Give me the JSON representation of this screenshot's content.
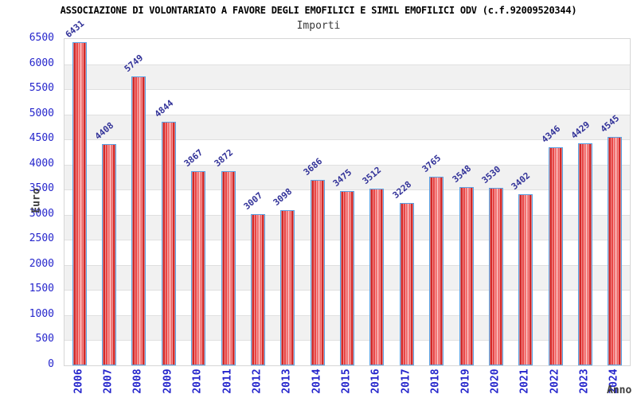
{
  "colors": {
    "bar-fill": "#e43434",
    "bar-fill-dark": "#b81a1a",
    "bar-fill-light": "#f9a0a0",
    "bar-border": "#5aa2e4",
    "tick-text": "#2525cc",
    "value-text": "#333399",
    "axis-title-text": "#3d3d3d",
    "band-gray": "#f1f1f1",
    "grid-line": "#e0e0e0",
    "plot-border": "#d6d6d6",
    "title-text": "#000000",
    "subtitle-text": "#3a3a3a"
  },
  "chart_data": {
    "type": "bar",
    "title": "ASSOCIAZIONE DI VOLONTARIATO A FAVORE DEGLI EMOFILICI E SIMIL EMOFILICI ODV (c.f.92009520344)",
    "subtitle": "Importi",
    "xlabel": "Anno",
    "ylabel": "Euro",
    "categories": [
      "2006",
      "2007",
      "2008",
      "2009",
      "2010",
      "2011",
      "2012",
      "2013",
      "2014",
      "2015",
      "2016",
      "2017",
      "2018",
      "2019",
      "2020",
      "2021",
      "2022",
      "2023",
      "2024"
    ],
    "values": [
      6431,
      4408,
      5749,
      4844,
      3867,
      3872,
      3007,
      3098,
      3686,
      3475,
      3512,
      3228,
      3765,
      3548,
      3530,
      3402,
      4346,
      4429,
      4545
    ],
    "ylim": [
      0,
      6500
    ],
    "ytick_step": 500,
    "yticks": [
      0,
      500,
      1000,
      1500,
      2000,
      2500,
      3000,
      3500,
      4000,
      4500,
      5000,
      5500,
      6000,
      6500
    ],
    "grid": "horizontal",
    "background_bands": "alternating white/gray every 500, white at top",
    "legend_position": "none",
    "value_labels": "above bars, rotated"
  }
}
